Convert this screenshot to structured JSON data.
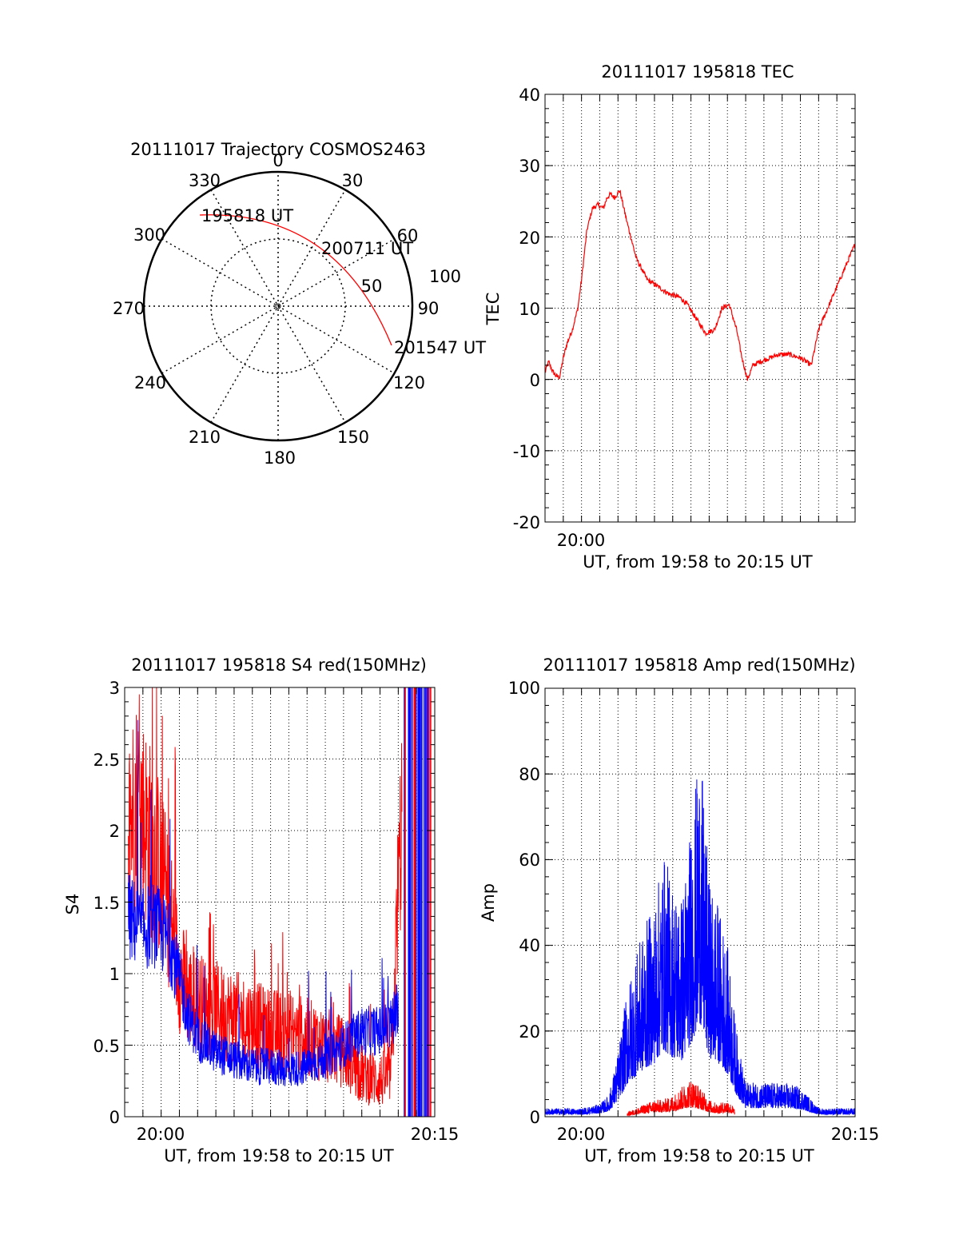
{
  "colors": {
    "red": "#ff0000",
    "blue": "#0000ff",
    "axis": "#000000",
    "grid": "#000000"
  },
  "chart_data": [
    {
      "id": "polar",
      "type": "scatter",
      "title": "20111017 Trajectory COSMOS2463",
      "azimuth_labels": [
        "0",
        "30",
        "60",
        "90",
        "120",
        "150",
        "180",
        "210",
        "240",
        "270",
        "300",
        "330"
      ],
      "elevation_labels": [
        "50",
        "100"
      ],
      "annotations": [
        "195818 UT",
        "200711 UT",
        "201547 UT"
      ],
      "trajectory": {
        "color": "red",
        "azimuth_deg": [
          -30,
          -20,
          -5,
          10,
          30,
          50,
          70,
          85,
          100,
          115
        ],
        "zenith_deg": [
          90,
          80,
          75,
          75,
          78,
          80,
          83,
          88,
          92,
          94
        ]
      }
    },
    {
      "id": "tec",
      "type": "line",
      "title": "20111017 195818 TEC",
      "xlabel": "UT, from 19:58 to 20:15 UT",
      "ylabel": "TEC",
      "x_tick_labels": [
        "20:00"
      ],
      "y_tick_labels": [
        "-20",
        "-10",
        "0",
        "10",
        "20",
        "30",
        "40"
      ],
      "xlim": [
        0,
        17
      ],
      "ylim": [
        -20,
        40
      ],
      "series": [
        {
          "color": "red",
          "x": [
            0,
            0.2,
            0.4,
            0.6,
            0.8,
            1.0,
            1.2,
            1.5,
            1.8,
            2.0,
            2.3,
            2.6,
            2.9,
            3.2,
            3.4,
            3.6,
            3.8,
            4.1,
            4.5,
            5.0,
            5.6,
            6.2,
            6.8,
            7.4,
            7.8,
            8.3,
            8.8,
            9.3,
            9.7,
            10.1,
            10.5,
            10.8,
            11.1,
            11.4,
            11.8,
            12.3,
            12.8,
            13.4,
            14.0,
            14.6,
            15.0,
            15.5,
            16.0,
            16.5,
            17.0
          ],
          "y": [
            1,
            2.5,
            1.2,
            0.5,
            0.3,
            3,
            5,
            7,
            10,
            14,
            21,
            24,
            24.5,
            24,
            25.5,
            26,
            25.5,
            26.5,
            22,
            17,
            14,
            13,
            12,
            11.5,
            10.5,
            8.5,
            6.5,
            7,
            10,
            10.5,
            7,
            3,
            0,
            2,
            2.5,
            3,
            3.5,
            3.5,
            3,
            2,
            7,
            10,
            13,
            16,
            19
          ]
        }
      ]
    },
    {
      "id": "s4",
      "type": "line",
      "title": "20111017 195818 S4 red(150MHz)",
      "xlabel": "UT, from 19:58 to 20:15 UT",
      "ylabel": "S4",
      "x_tick_labels": [
        "20:00",
        "20:15"
      ],
      "y_tick_labels": [
        "0",
        "0.5",
        "1",
        "1.5",
        "2",
        "2.5",
        "3"
      ],
      "xlim": [
        0,
        17
      ],
      "ylim": [
        0,
        3
      ],
      "series": [
        {
          "color": "red",
          "x": [
            0.2,
            0.6,
            1.0,
            1.5,
            2.0,
            2.5,
            3.0,
            3.5,
            4.0,
            5.0,
            6.0,
            7.0,
            8.0,
            9.0,
            10.0,
            11.0,
            12.0,
            13.0,
            14.0,
            14.6,
            15.0,
            15.2
          ],
          "y": [
            2.0,
            2.2,
            2.1,
            1.9,
            1.7,
            1.4,
            1.0,
            0.85,
            0.8,
            0.75,
            0.7,
            0.65,
            0.6,
            0.6,
            0.55,
            0.5,
            0.45,
            0.3,
            0.25,
            0.3,
            1.5,
            2.2
          ]
        },
        {
          "color": "blue",
          "x": [
            0.2,
            0.6,
            1.0,
            1.5,
            2.0,
            2.5,
            3.0,
            3.5,
            4.0,
            5.0,
            6.0,
            7.0,
            8.0,
            9.0,
            10.0,
            11.0,
            12.0,
            13.0,
            14.0,
            14.6,
            15.0
          ],
          "y": [
            1.4,
            1.35,
            1.3,
            1.35,
            1.3,
            1.2,
            0.95,
            0.7,
            0.55,
            0.45,
            0.4,
            0.35,
            0.35,
            0.33,
            0.35,
            0.4,
            0.5,
            0.6,
            0.6,
            0.65,
            0.8
          ]
        }
      ]
    },
    {
      "id": "amp",
      "type": "line",
      "title": "20111017 195818 Amp red(150MHz)",
      "xlabel": "UT, from 19:58 to 20:15 UT",
      "ylabel": "Amp",
      "x_tick_labels": [
        "20:00",
        "20:15"
      ],
      "y_tick_labels": [
        "0",
        "20",
        "40",
        "60",
        "80",
        "100"
      ],
      "xlim": [
        0,
        17
      ],
      "ylim": [
        0,
        100
      ],
      "series": [
        {
          "color": "blue",
          "x": [
            0,
            1,
            2,
            3,
            3.5,
            4.0,
            4.5,
            5.0,
            5.5,
            6.0,
            6.5,
            7.0,
            7.5,
            8.0,
            8.5,
            9.0,
            9.5,
            10.0,
            10.5,
            11,
            12,
            13,
            14,
            15,
            16,
            17
          ],
          "y": [
            2,
            2,
            2,
            3,
            5,
            15,
            30,
            38,
            45,
            50,
            62,
            55,
            52,
            68,
            87,
            55,
            50,
            40,
            20,
            8,
            8,
            8,
            7,
            2,
            2,
            2
          ]
        },
        {
          "color": "red",
          "x": [
            4.5,
            5.0,
            5.5,
            6.0,
            6.5,
            7.0,
            7.5,
            8.0,
            8.5,
            9.0,
            9.5,
            10.0,
            10.4
          ],
          "y": [
            1,
            2,
            3,
            4,
            4,
            5,
            7,
            9,
            7,
            4,
            3,
            4,
            2
          ]
        }
      ]
    }
  ]
}
